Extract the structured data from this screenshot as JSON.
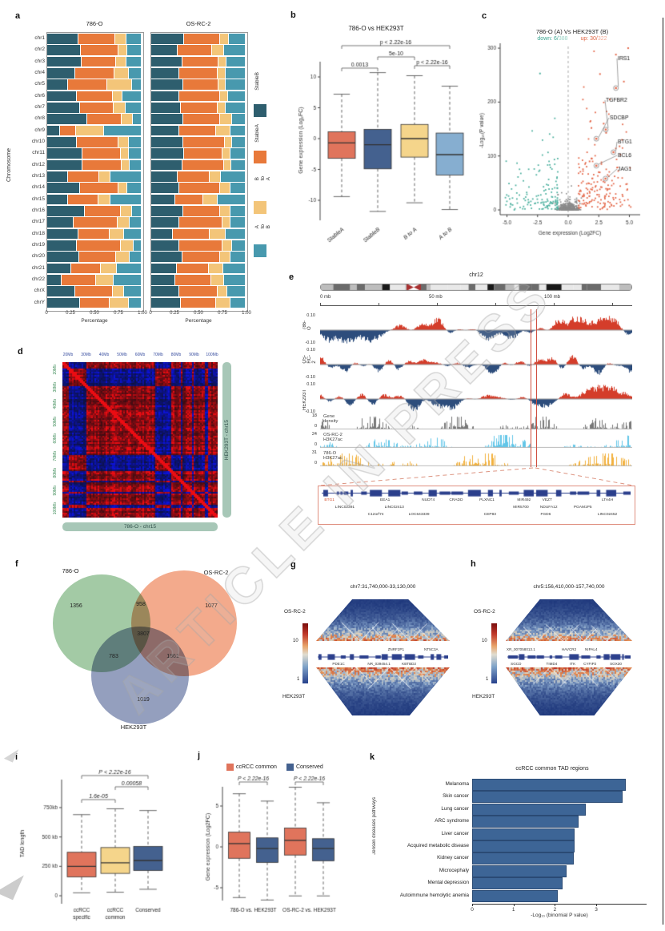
{
  "figure": {
    "watermark": "ARTICLE IN PRESS"
  },
  "panel_labels": {
    "a": "a",
    "b": "b",
    "c": "c",
    "d": "d",
    "e": "e",
    "f": "f",
    "g": "g",
    "h": "h",
    "i": "i",
    "j": "j",
    "k": "k"
  },
  "panel_a": {
    "titles": [
      "786-O",
      "OS-RC-2"
    ],
    "ylabel": "Chromosome",
    "xlabel": "Percentage",
    "xticks": [
      "0",
      "0.25",
      "0.50",
      "0.75",
      "1.00"
    ],
    "legend": [
      "StableB",
      "StableA",
      "B to A",
      "A to B"
    ],
    "legend_colors": [
      "#2e5e6e",
      "#e8793a",
      "#f3c579",
      "#4899ae"
    ],
    "chromosomes": [
      "chr1",
      "chr2",
      "chr3",
      "chr4",
      "chr5",
      "chr6",
      "chr7",
      "chr8",
      "chr9",
      "chr10",
      "chr11",
      "chr12",
      "chr13",
      "chr14",
      "chr15",
      "chr16",
      "chr17",
      "chr18",
      "chr19",
      "chr20",
      "chr21",
      "chr22",
      "chrX",
      "chrY"
    ],
    "chart_data": {
      "type": "stacked-bar-h",
      "series_order": [
        "StableB",
        "StableA",
        "B to A",
        "A to B"
      ],
      "series_786O": [
        [
          0.33,
          0.4,
          0.11,
          0.16
        ],
        [
          0.36,
          0.4,
          0.09,
          0.15
        ],
        [
          0.37,
          0.37,
          0.1,
          0.16
        ],
        [
          0.3,
          0.42,
          0.15,
          0.13
        ],
        [
          0.22,
          0.42,
          0.26,
          0.1
        ],
        [
          0.32,
          0.38,
          0.1,
          0.2
        ],
        [
          0.35,
          0.36,
          0.12,
          0.17
        ],
        [
          0.43,
          0.37,
          0.11,
          0.09
        ],
        [
          0.13,
          0.17,
          0.3,
          0.4
        ],
        [
          0.32,
          0.44,
          0.11,
          0.13
        ],
        [
          0.38,
          0.41,
          0.08,
          0.13
        ],
        [
          0.38,
          0.42,
          0.08,
          0.12
        ],
        [
          0.22,
          0.33,
          0.12,
          0.33
        ],
        [
          0.35,
          0.41,
          0.09,
          0.15
        ],
        [
          0.22,
          0.32,
          0.13,
          0.33
        ],
        [
          0.4,
          0.39,
          0.11,
          0.1
        ],
        [
          0.28,
          0.47,
          0.13,
          0.12
        ],
        [
          0.33,
          0.34,
          0.15,
          0.18
        ],
        [
          0.32,
          0.47,
          0.13,
          0.08
        ],
        [
          0.34,
          0.4,
          0.14,
          0.12
        ],
        [
          0.25,
          0.32,
          0.17,
          0.26
        ],
        [
          0.15,
          0.37,
          0.18,
          0.3
        ],
        [
          0.3,
          0.4,
          0.12,
          0.18
        ],
        [
          0.35,
          0.32,
          0.2,
          0.13
        ]
      ],
      "series_OSRC2": [
        [
          0.35,
          0.39,
          0.08,
          0.18
        ],
        [
          0.28,
          0.37,
          0.12,
          0.23
        ],
        [
          0.33,
          0.39,
          0.08,
          0.2
        ],
        [
          0.3,
          0.41,
          0.08,
          0.21
        ],
        [
          0.34,
          0.38,
          0.07,
          0.21
        ],
        [
          0.3,
          0.44,
          0.08,
          0.18
        ],
        [
          0.32,
          0.39,
          0.08,
          0.21
        ],
        [
          0.34,
          0.4,
          0.12,
          0.14
        ],
        [
          0.3,
          0.39,
          0.15,
          0.16
        ],
        [
          0.34,
          0.45,
          0.07,
          0.14
        ],
        [
          0.35,
          0.41,
          0.08,
          0.16
        ],
        [
          0.33,
          0.45,
          0.07,
          0.15
        ],
        [
          0.28,
          0.34,
          0.12,
          0.26
        ],
        [
          0.3,
          0.44,
          0.1,
          0.16
        ],
        [
          0.25,
          0.3,
          0.15,
          0.3
        ],
        [
          0.34,
          0.4,
          0.1,
          0.16
        ],
        [
          0.3,
          0.46,
          0.08,
          0.16
        ],
        [
          0.23,
          0.39,
          0.17,
          0.21
        ],
        [
          0.3,
          0.46,
          0.1,
          0.14
        ],
        [
          0.33,
          0.41,
          0.1,
          0.16
        ],
        [
          0.27,
          0.34,
          0.15,
          0.24
        ],
        [
          0.25,
          0.39,
          0.13,
          0.23
        ],
        [
          0.3,
          0.41,
          0.1,
          0.19
        ],
        [
          0.32,
          0.37,
          0.15,
          0.16
        ]
      ]
    }
  },
  "panel_b": {
    "title": "786-O vs HEK293T",
    "ylabel": "Gene expression (Log₂FC)",
    "yticks": [
      10,
      5,
      0,
      -5,
      -10
    ],
    "categories": [
      "StableA",
      "StableB",
      "B to A",
      "A to B"
    ],
    "pvalues": [
      {
        "span": [
          0,
          3
        ],
        "label": "p < 2.22e-16"
      },
      {
        "span": [
          1,
          2
        ],
        "label": "5e-10"
      },
      {
        "span": [
          0,
          1
        ],
        "label": "0.0013"
      },
      {
        "span": [
          2,
          3
        ],
        "label": "p < 2.22e-16"
      }
    ],
    "chart_data": {
      "type": "boxplot",
      "boxes": [
        {
          "name": "StableA",
          "q1": -3.2,
          "median": -0.7,
          "q3": 1.1,
          "lo": -9.4,
          "hi": 7.2,
          "color": "#e0745c"
        },
        {
          "name": "StableB",
          "q1": -4.9,
          "median": -1.0,
          "q3": 1.5,
          "lo": -11.8,
          "hi": 10.7,
          "color": "#44618f"
        },
        {
          "name": "B to A",
          "q1": -3.0,
          "median": 0.0,
          "q3": 2.3,
          "lo": -10.4,
          "hi": 10.2,
          "color": "#f5d58b"
        },
        {
          "name": "A to B",
          "q1": -5.9,
          "median": -2.6,
          "q3": 0.9,
          "lo": -11.5,
          "hi": 8.5,
          "color": "#86aed0"
        }
      ]
    }
  },
  "panel_c": {
    "title": "786-O (A) Vs HEK293T (B)",
    "subtitle": {
      "down_label": "down: 6/",
      "down_total": "388",
      "up_label": "up: 30/",
      "up_total": "322"
    },
    "xlabel": "Gene expression (Log2FC)",
    "ylabel": "-Log₁₀(P value)",
    "xticks": [
      "-5.0",
      "-2.5",
      "0.0",
      "2.5",
      "5.0"
    ],
    "yticks": [
      0,
      100,
      200,
      300
    ],
    "colors": {
      "down": "#4fb1a0",
      "up": "#e4694b",
      "ns": "#8a8a8a"
    },
    "chart_data": {
      "type": "scatter-volcano",
      "labeled_genes": [
        {
          "name": "IRS1",
          "x": 3.9,
          "y": 226
        },
        {
          "name": "TGFBR2",
          "x": 3.07,
          "y": 149
        },
        {
          "name": "SDCBP",
          "x": 2.3,
          "y": 132
        },
        {
          "name": "BTG1",
          "x": 3.7,
          "y": 107
        },
        {
          "name": "BCL6",
          "x": 2.3,
          "y": 82
        },
        {
          "name": "JAG1",
          "x": 3.05,
          "y": 58
        }
      ]
    }
  },
  "panel_d": {
    "top_ticks": [
      "20Mb",
      "30Mb",
      "40Mb",
      "50Mb",
      "60Mb",
      "70Mb",
      "80Mb",
      "90Mb",
      "100Mb"
    ],
    "left_ticks": [
      "20Mb",
      "30Mb",
      "40Mb",
      "50Mb",
      "60Mb",
      "70Mb",
      "80Mb",
      "90Mb",
      "100Mb"
    ],
    "bottom_label": "786-O - chr15",
    "right_label": "HEK293T - chr15"
  },
  "panel_e": {
    "chromosome": "chr12",
    "scale_ticks": [
      "0 mb",
      "50 mb",
      "100 mb"
    ],
    "tracks": [
      {
        "name": "786-O",
        "ymax": "0.10",
        "ymin": "-0.10"
      },
      {
        "name": "OS-RC-2",
        "ymax": "0.10",
        "ymin": "-0.10"
      },
      {
        "name": "HEK293T",
        "ymax": "0.10",
        "ymin": "-0.10"
      },
      {
        "name": "Gene density",
        "ymax": "18",
        "ymin": "0"
      },
      {
        "name": "OS-RC-2 H3K27ac",
        "ymax": "24",
        "ymin": "0"
      },
      {
        "name": "786-O H3K27ac",
        "ymax": "31",
        "ymin": "0"
      }
    ],
    "gene_rows": [
      [
        {
          "t": "BTG1",
          "x": 0.025,
          "red": true
        },
        {
          "t": "EEA1",
          "x": 0.205
        },
        {
          "t": "NUDT4",
          "x": 0.345
        },
        {
          "t": "CRADD",
          "x": 0.435
        },
        {
          "t": "PLXNC1",
          "x": 0.535
        },
        {
          "t": "MIR492",
          "x": 0.655
        },
        {
          "t": "VEZT",
          "x": 0.73
        },
        {
          "t": "LTA4H",
          "x": 0.925
        }
      ],
      [
        {
          "t": "LINC02391",
          "x": 0.075
        },
        {
          "t": "LINC02413",
          "x": 0.235
        },
        {
          "t": "MIR5700",
          "x": 0.645
        },
        {
          "t": "NDUFA12",
          "x": 0.735
        },
        {
          "t": "PGAM1P5",
          "x": 0.845
        }
      ],
      [
        {
          "t": "C12orf74",
          "x": 0.175
        },
        {
          "t": "LOC643339",
          "x": 0.315
        },
        {
          "t": "CEP83",
          "x": 0.545
        },
        {
          "t": "FGD6",
          "x": 0.725
        },
        {
          "t": "LINC02452",
          "x": 0.925
        }
      ]
    ]
  },
  "panel_f": {
    "sets": [
      {
        "name": "786-O",
        "count": "1356",
        "color": "#8fbe91"
      },
      {
        "name": "OS-RC-2",
        "count": "1077",
        "color": "#f0926c"
      },
      {
        "name": "HEK293T",
        "count": "1019",
        "color": "#7c8ab0"
      }
    ],
    "overlaps": {
      "g_o": "958",
      "g_h": "783",
      "o_h": "1861",
      "all": "3807"
    }
  },
  "panel_g": {
    "title": "chr7:31,740,000-33,130,000",
    "top_cell": "OS-RC-2",
    "bottom_cell": "HEK293T",
    "colorbar": {
      "max": "10",
      "min": "1"
    },
    "genes_above": [
      {
        "t": "ZNRF2P1",
        "x": 0.6
      },
      {
        "t": "NT5C3A",
        "x": 0.87
      }
    ],
    "genes_below": [
      {
        "t": "PDE1C",
        "x": 0.16
      },
      {
        "t": "NR_039454.1",
        "x": 0.47
      },
      {
        "t": "KBTBD2",
        "x": 0.7
      }
    ]
  },
  "panel_h": {
    "title": "chr5:156,410,000-157,740,000",
    "top_cell": "OS-RC-2",
    "bottom_cell": "HEK293T",
    "colorbar": {
      "max": "10",
      "min": "1"
    },
    "genes_above": [
      {
        "t": "XR_007058013.1",
        "x": 0.11
      },
      {
        "t": "HAVCR2",
        "x": 0.5
      },
      {
        "t": "NIPAL4",
        "x": 0.68
      }
    ],
    "genes_below": [
      {
        "t": "SGCD",
        "x": 0.07
      },
      {
        "t": "TIMD4",
        "x": 0.36
      },
      {
        "t": "ITK",
        "x": 0.53
      },
      {
        "t": "CYFIP2",
        "x": 0.67
      },
      {
        "t": "SOX30",
        "x": 0.88
      }
    ]
  },
  "panel_i": {
    "ylabel": "TAD length",
    "yticks": [
      {
        "v": 0,
        "t": "0"
      },
      {
        "v": 250,
        "t": "250 kb"
      },
      {
        "v": 500,
        "t": "500 kb"
      },
      {
        "v": 750,
        "t": "750kb"
      }
    ],
    "categories": [
      [
        "ccRCC",
        "specific"
      ],
      [
        "ccRCC",
        "common"
      ],
      [
        "Conserved"
      ]
    ],
    "pvalues": [
      {
        "span": [
          0,
          2
        ],
        "label": "P < 2.22e-16"
      },
      {
        "span": [
          1,
          2
        ],
        "label": "0.00058"
      },
      {
        "span": [
          0,
          1
        ],
        "label": "1.6e-05"
      }
    ],
    "chart_data": {
      "type": "boxplot",
      "unit": "kb",
      "boxes": [
        {
          "name": "ccRCC specific",
          "q1": 160,
          "median": 250,
          "q3": 370,
          "lo": 25,
          "hi": 690,
          "color": "#e0745c"
        },
        {
          "name": "ccRCC common",
          "q1": 190,
          "median": 280,
          "q3": 410,
          "lo": 30,
          "hi": 740,
          "color": "#f5d58b"
        },
        {
          "name": "Conserved",
          "q1": 215,
          "median": 300,
          "q3": 420,
          "lo": 55,
          "hi": 725,
          "color": "#44618f"
        }
      ]
    }
  },
  "panel_j": {
    "legend": [
      {
        "label": "ccRCC common",
        "color": "#e0745c"
      },
      {
        "label": "Conserved",
        "color": "#44618f"
      }
    ],
    "ylabel": "Gene expression (Log2FC)",
    "yticks": [
      5,
      0,
      -5
    ],
    "categories": [
      "786-O vs. HEK293T",
      "OS-RC-2 vs. HEK293T"
    ],
    "pvalues": [
      "P < 2.22e-16",
      "P < 2.22e-16"
    ],
    "chart_data": {
      "type": "boxplot",
      "boxes": [
        {
          "group": "786-O vs. HEK293T",
          "name": "ccRCC common",
          "q1": -1.4,
          "median": 0.4,
          "q3": 1.8,
          "lo": -6.2,
          "hi": 6.5,
          "color": "#e0745c"
        },
        {
          "group": "786-O vs. HEK293T",
          "name": "Conserved",
          "q1": -1.9,
          "median": -0.2,
          "q3": 1.1,
          "lo": -6.5,
          "hi": 5.6,
          "color": "#44618f"
        },
        {
          "group": "OS-RC-2 vs. HEK293T",
          "name": "ccRCC common",
          "q1": -1.0,
          "median": 0.8,
          "q3": 2.3,
          "lo": -6.0,
          "hi": 7.3,
          "color": "#e0745c"
        },
        {
          "group": "OS-RC-2 vs. HEK293T",
          "name": "Conserved",
          "q1": -1.7,
          "median": -0.2,
          "q3": 1.0,
          "lo": -6.0,
          "hi": 5.4,
          "color": "#44618f"
        }
      ]
    }
  },
  "panel_k": {
    "title": "ccRCC common TAD regions",
    "ylabel": "Jensen diseases pathways",
    "xlabel": "-Log₁₀ (binomial P value)",
    "xticks": [
      "0",
      "1",
      "2",
      "3"
    ],
    "chart_data": {
      "type": "bar",
      "categories": [
        "Melanoma",
        "Skin cancer",
        "Lung cancer",
        "ARC syndrome",
        "Liver cancer",
        "Acquired metabolic disease",
        "Kidney cancer",
        "Microcephaly",
        "Mental depression",
        "Autoimmune hemolytic anemia"
      ],
      "values": [
        3.67,
        3.6,
        2.71,
        2.53,
        2.44,
        2.44,
        2.42,
        2.25,
        2.15,
        2.03
      ],
      "xlim": [
        0,
        4.2
      ],
      "bar_color": "#3d6596"
    }
  }
}
